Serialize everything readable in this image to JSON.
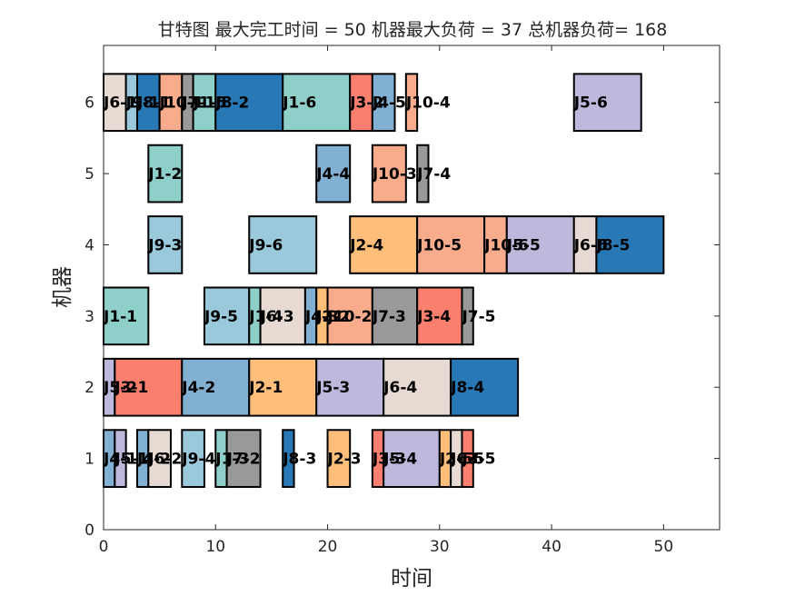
{
  "chart_data": {
    "type": "gantt",
    "title": "甘特图 最大完工时间 = 50 机器最大负荷 = 37 总机器负荷= 168",
    "xlabel": "时间",
    "ylabel": "机器",
    "xlim": [
      0,
      55
    ],
    "ylim": [
      0,
      6.8
    ],
    "xticks": [
      0,
      10,
      20,
      30,
      40,
      50
    ],
    "yticks": [
      0,
      1,
      2,
      3,
      4,
      5,
      6
    ],
    "colors": {
      "J1": "#8ecfc9",
      "J2": "#ffbe7a",
      "J3": "#fa7f6f",
      "J4": "#82b0d2",
      "J5": "#beb8dc",
      "J6": "#e7dad2",
      "J7": "#999999",
      "J8": "#2878b5",
      "J9": "#9ac9db",
      "J10": "#f8ac8c"
    },
    "tasks": [
      {
        "machine": 1,
        "job": "J4",
        "label": "J4-1",
        "start": 0,
        "end": 1
      },
      {
        "machine": 1,
        "job": "J5",
        "label": "J5-1",
        "start": 1,
        "end": 2
      },
      {
        "machine": 1,
        "job": "J4",
        "label": "J4-2",
        "start": 3,
        "end": 4
      },
      {
        "machine": 1,
        "job": "J6",
        "label": "J6-2",
        "start": 4,
        "end": 6
      },
      {
        "machine": 1,
        "job": "J9",
        "label": "J9-4",
        "start": 7,
        "end": 9
      },
      {
        "machine": 1,
        "job": "J1",
        "label": "J1-3",
        "start": 10,
        "end": 11
      },
      {
        "machine": 1,
        "job": "J7",
        "label": "J7-2",
        "start": 11,
        "end": 14
      },
      {
        "machine": 1,
        "job": "J8",
        "label": "J8-3",
        "start": 16,
        "end": 17
      },
      {
        "machine": 1,
        "job": "J2",
        "label": "J2-3",
        "start": 20,
        "end": 22
      },
      {
        "machine": 1,
        "job": "J3",
        "label": "J3-3",
        "start": 24,
        "end": 25
      },
      {
        "machine": 1,
        "job": "J5",
        "label": "J5-4",
        "start": 25,
        "end": 30
      },
      {
        "machine": 1,
        "job": "J2",
        "label": "J2-5",
        "start": 30,
        "end": 31
      },
      {
        "machine": 1,
        "job": "J6",
        "label": "J6-5",
        "start": 31,
        "end": 32
      },
      {
        "machine": 1,
        "job": "J3",
        "label": "J3-5",
        "start": 32,
        "end": 33
      },
      {
        "machine": 2,
        "job": "J5",
        "label": "J5-2",
        "start": 0,
        "end": 1
      },
      {
        "machine": 2,
        "job": "J3",
        "label": "J3-1",
        "start": 1,
        "end": 7
      },
      {
        "machine": 2,
        "job": "J4",
        "label": "J4-2",
        "start": 7,
        "end": 13
      },
      {
        "machine": 2,
        "job": "J2",
        "label": "J2-1",
        "start": 13,
        "end": 19
      },
      {
        "machine": 2,
        "job": "J5",
        "label": "J5-3",
        "start": 19,
        "end": 25
      },
      {
        "machine": 2,
        "job": "J6",
        "label": "J6-4",
        "start": 25,
        "end": 31
      },
      {
        "machine": 2,
        "job": "J8",
        "label": "J8-4",
        "start": 31,
        "end": 37
      },
      {
        "machine": 3,
        "job": "J1",
        "label": "J1-1",
        "start": 0,
        "end": 4
      },
      {
        "machine": 3,
        "job": "J9",
        "label": "J9-5",
        "start": 9,
        "end": 13
      },
      {
        "machine": 3,
        "job": "J1",
        "label": "J1-4",
        "start": 13,
        "end": 14
      },
      {
        "machine": 3,
        "job": "J6",
        "label": "J6-3",
        "start": 14,
        "end": 18
      },
      {
        "machine": 3,
        "job": "J4",
        "label": "J4-3",
        "start": 18,
        "end": 19
      },
      {
        "machine": 3,
        "job": "J2",
        "label": "J2-2",
        "start": 19,
        "end": 20
      },
      {
        "machine": 3,
        "job": "J10",
        "label": "J10-2",
        "start": 20,
        "end": 24
      },
      {
        "machine": 3,
        "job": "J7",
        "label": "J7-3",
        "start": 24,
        "end": 28
      },
      {
        "machine": 3,
        "job": "J3",
        "label": "J3-4",
        "start": 28,
        "end": 32
      },
      {
        "machine": 3,
        "job": "J7",
        "label": "J7-5",
        "start": 32,
        "end": 33
      },
      {
        "machine": 4,
        "job": "J9",
        "label": "J9-3",
        "start": 4,
        "end": 7
      },
      {
        "machine": 4,
        "job": "J9",
        "label": "J9-6",
        "start": 13,
        "end": 19
      },
      {
        "machine": 4,
        "job": "J2",
        "label": "J2-4",
        "start": 22,
        "end": 28
      },
      {
        "machine": 4,
        "job": "J10",
        "label": "J10-5",
        "start": 28,
        "end": 34
      },
      {
        "machine": 4,
        "job": "J10",
        "label": "J10-6",
        "start": 34,
        "end": 36
      },
      {
        "machine": 4,
        "job": "J5",
        "label": "J5-5",
        "start": 36,
        "end": 42
      },
      {
        "machine": 4,
        "job": "J6",
        "label": "J6-6",
        "start": 42,
        "end": 44
      },
      {
        "machine": 4,
        "job": "J8",
        "label": "J8-5",
        "start": 44,
        "end": 50
      },
      {
        "machine": 5,
        "job": "J1",
        "label": "J1-2",
        "start": 4,
        "end": 7
      },
      {
        "machine": 5,
        "job": "J4",
        "label": "J4-4",
        "start": 19,
        "end": 22
      },
      {
        "machine": 5,
        "job": "J10",
        "label": "J10-3",
        "start": 24,
        "end": 27
      },
      {
        "machine": 5,
        "job": "J7",
        "label": "J7-4",
        "start": 28,
        "end": 29
      },
      {
        "machine": 6,
        "job": "J6",
        "label": "J6-1",
        "start": 0,
        "end": 2
      },
      {
        "machine": 6,
        "job": "J9",
        "label": "J9-1",
        "start": 2,
        "end": 3
      },
      {
        "machine": 6,
        "job": "J8",
        "label": "J8-1",
        "start": 3,
        "end": 5
      },
      {
        "machine": 6,
        "job": "J10",
        "label": "J10-1",
        "start": 5,
        "end": 7
      },
      {
        "machine": 6,
        "job": "J7",
        "label": "J7-1",
        "start": 7,
        "end": 8
      },
      {
        "machine": 6,
        "job": "J1",
        "label": "J1-5",
        "start": 8,
        "end": 10
      },
      {
        "machine": 6,
        "job": "J8",
        "label": "J8-2",
        "start": 10,
        "end": 16
      },
      {
        "machine": 6,
        "job": "J1",
        "label": "J1-6",
        "start": 16,
        "end": 22
      },
      {
        "machine": 6,
        "job": "J3",
        "label": "J3-2",
        "start": 22,
        "end": 24
      },
      {
        "machine": 6,
        "job": "J4",
        "label": "J4-5",
        "start": 24,
        "end": 26
      },
      {
        "machine": 6,
        "job": "J10",
        "label": "J10-4",
        "start": 27,
        "end": 28
      },
      {
        "machine": 6,
        "job": "J5",
        "label": "J5-6",
        "start": 42,
        "end": 48
      }
    ]
  }
}
